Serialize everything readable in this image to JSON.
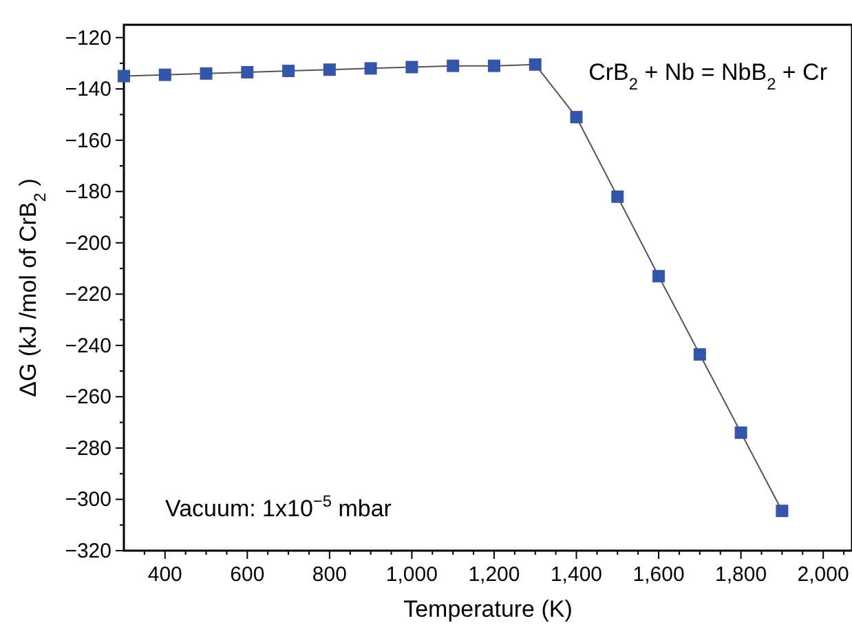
{
  "chart_data": {
    "type": "line",
    "xlabel": "Temperature (K)",
    "ylabel": "ΔG (kJ /mol of CrB$_{2}$ )",
    "annotations": [
      "CrB$_{2}$ + Nb = NbB$_{2}$ + Cr",
      "Vacuum: 1x10$^{−5}$ mbar"
    ],
    "x": [
      300,
      400,
      500,
      600,
      700,
      800,
      900,
      1000,
      1100,
      1200,
      1300,
      1400,
      1500,
      1600,
      1700,
      1800,
      1900
    ],
    "series": [
      {
        "color": "#3355aa",
        "values": [
          -135,
          -134.5,
          -134,
          -133.5,
          -133,
          -132.5,
          -132,
          -131.5,
          -131,
          -131,
          -130.5,
          -151,
          -182,
          -213,
          -243.5,
          -274,
          -304.5
        ]
      }
    ],
    "marker": "square",
    "line_style": "solid",
    "grid": false,
    "xlim": [
      300,
      2070
    ],
    "xticks": [
      {
        "value": 350,
        "label": null
      },
      {
        "value": 400,
        "label": "400"
      },
      {
        "value": 450,
        "label": null
      },
      {
        "value": 500,
        "label": null
      },
      {
        "value": 550,
        "label": null
      },
      {
        "value": 600,
        "label": "600"
      },
      {
        "value": 650,
        "label": null
      },
      {
        "value": 700,
        "label": null
      },
      {
        "value": 750,
        "label": null
      },
      {
        "value": 800,
        "label": "800"
      },
      {
        "value": 850,
        "label": null
      },
      {
        "value": 900,
        "label": null
      },
      {
        "value": 950,
        "label": null
      },
      {
        "value": 1000,
        "label": "1,000"
      },
      {
        "value": 1050,
        "label": null
      },
      {
        "value": 1100,
        "label": null
      },
      {
        "value": 1150,
        "label": null
      },
      {
        "value": 1200,
        "label": "1,200"
      },
      {
        "value": 1250,
        "label": null
      },
      {
        "value": 1300,
        "label": null
      },
      {
        "value": 1350,
        "label": null
      },
      {
        "value": 1400,
        "label": "1,400"
      },
      {
        "value": 1450,
        "label": null
      },
      {
        "value": 1500,
        "label": null
      },
      {
        "value": 1550,
        "label": null
      },
      {
        "value": 1600,
        "label": "1,600"
      },
      {
        "value": 1650,
        "label": null
      },
      {
        "value": 1700,
        "label": null
      },
      {
        "value": 1750,
        "label": null
      },
      {
        "value": 1800,
        "label": "1,800"
      },
      {
        "value": 1850,
        "label": null
      },
      {
        "value": 1900,
        "label": null
      },
      {
        "value": 1950,
        "label": null
      },
      {
        "value": 2000,
        "label": "2,000"
      },
      {
        "value": 2050,
        "label": null
      }
    ],
    "ylim": [
      -320,
      -115
    ],
    "yticks": [
      {
        "value": -320,
        "label": "−320"
      },
      {
        "value": -310,
        "label": null
      },
      {
        "value": -300,
        "label": "−300"
      },
      {
        "value": -290,
        "label": null
      },
      {
        "value": -280,
        "label": "−280"
      },
      {
        "value": -270,
        "label": null
      },
      {
        "value": -260,
        "label": "−260"
      },
      {
        "value": -250,
        "label": null
      },
      {
        "value": -240,
        "label": "−240"
      },
      {
        "value": -230,
        "label": null
      },
      {
        "value": -220,
        "label": "−220"
      },
      {
        "value": -210,
        "label": null
      },
      {
        "value": -200,
        "label": "−200"
      },
      {
        "value": -190,
        "label": null
      },
      {
        "value": -180,
        "label": "−180"
      },
      {
        "value": -170,
        "label": null
      },
      {
        "value": -160,
        "label": "−160"
      },
      {
        "value": -150,
        "label": null
      },
      {
        "value": -140,
        "label": "−140"
      },
      {
        "value": -130,
        "label": null
      },
      {
        "value": -120,
        "label": "−120"
      }
    ]
  }
}
